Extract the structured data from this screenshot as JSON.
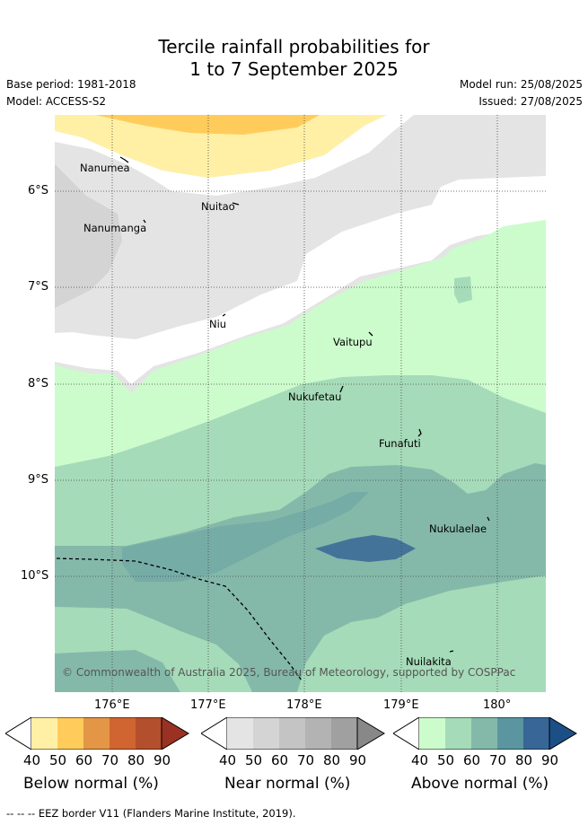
{
  "title_line1": "Tercile rainfall probabilities for",
  "title_line2": "1 to 7 September 2025",
  "meta": {
    "base_period": "Base period: 1981-2018",
    "model": "Model: ACCESS-S2",
    "model_run": "Model run: 25/08/2025",
    "issued": "Issued: 27/08/2025"
  },
  "axes": {
    "lon_ticks": [
      "176°E",
      "177°E",
      "178°E",
      "179°E",
      "180°"
    ],
    "lat_ticks": [
      "6°S",
      "7°S",
      "8°S",
      "9°S",
      "10°S"
    ]
  },
  "places": [
    "Nanumea",
    "Nuitao",
    "Nanumanga",
    "Niu",
    "Vaitupu",
    "Nukufetau",
    "Funafuti",
    "Nukulaelae",
    "Nuilakita"
  ],
  "copyright": "© Commonwealth of Australia 2025, Bureau of Meteorology, supported by COSPPac",
  "colorbars": {
    "labels": [
      "40",
      "50",
      "60",
      "70",
      "80",
      "90"
    ],
    "below": {
      "title": "Below normal (%)",
      "colors": [
        "#fff0a6",
        "#ffcc5c",
        "#e39646",
        "#d06531",
        "#b34f2c",
        "#9b3123"
      ]
    },
    "near": {
      "title": "Near normal (%)",
      "colors": [
        "#e4e4e4",
        "#d4d4d4",
        "#c4c4c4",
        "#b3b3b3",
        "#a0a0a0",
        "#888888"
      ]
    },
    "above": {
      "title": "Above normal (%)",
      "colors": [
        "#ccfccc",
        "#a6dbb9",
        "#84b9aa",
        "#5b96a0",
        "#386697",
        "#1c4f86"
      ]
    }
  },
  "footer": "-- -- -- EEZ border V11 (Flanders Marine Institute, 2019)."
}
